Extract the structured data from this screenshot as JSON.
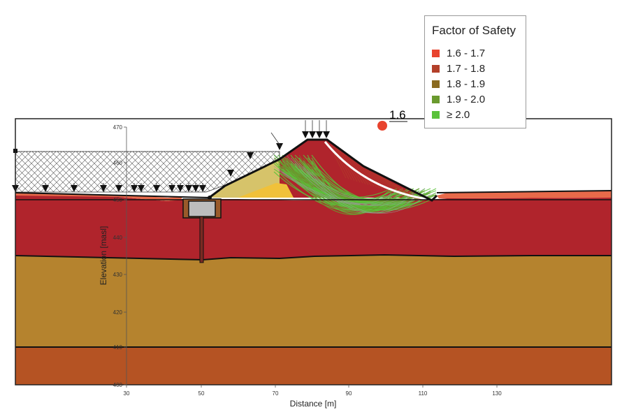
{
  "legend": {
    "title": "Factor of Safety",
    "items": [
      {
        "label": "1.6 - 1.7",
        "color": "#e8432e"
      },
      {
        "label": "1.7 - 1.8",
        "color": "#b3402a"
      },
      {
        "label": "1.8 - 1.9",
        "color": "#8a6a1f"
      },
      {
        "label": "1.9 - 2.0",
        "color": "#6a9a2e"
      },
      {
        "label": "≥ 2.0",
        "color": "#5ac23a"
      }
    ]
  },
  "critical": {
    "fos_label": "1.6",
    "marker_color": "#e8432e"
  },
  "axes": {
    "x_title": "Distance [m]",
    "y_title": "Elevation [masl]",
    "x_ticks": [
      "30",
      "50",
      "70",
      "90",
      "110",
      "130"
    ],
    "y_ticks": [
      "470",
      "460",
      "450",
      "440",
      "430",
      "420",
      "410",
      "400"
    ]
  },
  "materials": {
    "upper_clay": "#b0242c",
    "middle_layer": "#b5832e",
    "base_layer": "#b55323",
    "embankment_core": "#d6c36a",
    "inner_fill": "#f0c13a",
    "topsoil": "#e86a4a"
  }
}
